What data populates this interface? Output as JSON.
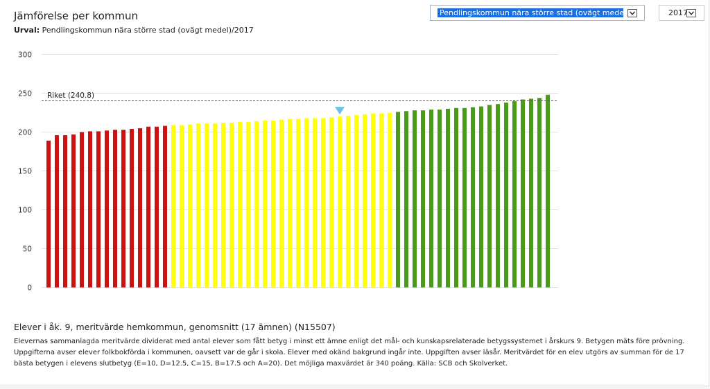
{
  "header": {
    "title": "Jämförelse per kommun",
    "subtitle_label": "Urval:",
    "subtitle_value": " Pendlingskommun nära större stad (ovägt medel)/2017"
  },
  "controls": {
    "group_select_value": "Pendlingskommun nära större stad (ovägt medel)",
    "year_select_value": "2017"
  },
  "colors": {
    "red": "#cc1111",
    "yellow": "#ffff0a",
    "green": "#4a9a1c",
    "marker": "#6ec0ea",
    "reference_line": "#555555"
  },
  "chart_data": {
    "type": "bar",
    "ylim": [
      0,
      300
    ],
    "yticks": [
      0,
      50,
      100,
      150,
      200,
      250,
      300
    ],
    "reference_line": {
      "label": "Riket (240.8)",
      "value": 240.8
    },
    "selected_index": 35,
    "values": [
      189,
      196,
      196,
      197,
      200,
      201,
      201,
      202,
      203,
      203,
      204,
      205,
      207,
      207,
      208,
      209,
      209,
      210,
      211,
      211,
      211,
      212,
      212,
      213,
      213,
      214,
      215,
      215,
      216,
      217,
      217,
      218,
      218,
      218,
      219,
      220,
      221,
      222,
      223,
      224,
      224,
      225,
      226,
      227,
      228,
      228,
      229,
      229,
      230,
      231,
      231,
      232,
      233,
      235,
      236,
      238,
      240,
      242,
      243,
      244,
      248
    ],
    "band_colors": {
      "red_until_index": 14,
      "yellow_until_index": 41
    }
  },
  "description": {
    "title": "Elever i åk. 9, meritvärde hemkommun, genomsnitt (17 ämnen) (N15507)",
    "body": "Elevernas sammanlagda meritvärde dividerat med antal elever som fått betyg i minst ett ämne enligt det mål- och kunskapsrelaterade betygssystemet i årskurs 9. Betygen mäts före prövning. Uppgifterna avser elever folkbokförda i kommunen, oavsett var de går i skola. Elever med okänd bakgrund ingår inte. Uppgiften avser läsår. Meritvärdet för en elev utgörs av summan för de 17 bästa betygen i elevens slutbetyg (E=10, D=12.5, C=15, B=17.5 och A=20). Det möjliga maxvärdet är 340 poäng. Källa: SCB och Skolverket."
  }
}
